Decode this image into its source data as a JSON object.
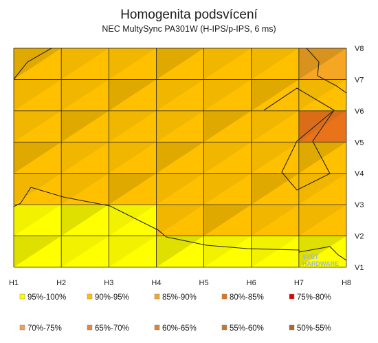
{
  "chart_data": {
    "type": "heatmap",
    "title": "Homogenita podsvícení",
    "subtitle": "NEC MultySync PA301W (H-IPS/p-IPS, 6 ms)",
    "x_ticks": [
      "H1",
      "H2",
      "H3",
      "H4",
      "H5",
      "H6",
      "H7",
      "H8"
    ],
    "y_ticks": [
      "V1",
      "V2",
      "V3",
      "V4",
      "V5",
      "V6",
      "V7",
      "V8"
    ],
    "grid": true,
    "legend_position": "bottom",
    "legend": [
      {
        "label": "95%-100%",
        "color": "#ffff00"
      },
      {
        "label": "90%-95%",
        "color": "#ffc000"
      },
      {
        "label": "85%-90%",
        "color": "#f5a623"
      },
      {
        "label": "80%-85%",
        "color": "#e8731a"
      },
      {
        "label": "75%-80%",
        "color": "#e00000"
      },
      {
        "label": "70%-75%",
        "color": "#f0a050"
      },
      {
        "label": "65%-70%",
        "color": "#e08a40"
      },
      {
        "label": "60%-65%",
        "color": "#d8843c"
      },
      {
        "label": "55%-60%",
        "color": "#c47830"
      },
      {
        "label": "50%-55%",
        "color": "#a86a2a"
      }
    ],
    "cell_bands": [
      [
        "90%-95%",
        "90%-95%",
        "90%-95%",
        "90%-95%",
        "90%-95%",
        "90%-95%",
        "85%-90%"
      ],
      [
        "90%-95%",
        "90%-95%",
        "90%-95%",
        "90%-95%",
        "90%-95%",
        "90%-95%",
        "90%-95%"
      ],
      [
        "90%-95%",
        "90%-95%",
        "90%-95%",
        "90%-95%",
        "90%-95%",
        "90%-95%",
        "80%-85%"
      ],
      [
        "90%-95%",
        "90%-95%",
        "90%-95%",
        "90%-95%",
        "90%-95%",
        "90%-95%",
        "90%-95%"
      ],
      [
        "90%-95%",
        "90%-95%",
        "90%-95%",
        "90%-95%",
        "90%-95%",
        "90%-95%",
        "90%-95%"
      ],
      [
        "95%-100%",
        "95%-100%",
        "95%-100%",
        "90%-95%",
        "90%-95%",
        "90%-95%",
        "90%-95%"
      ],
      [
        "95%-100%",
        "95%-100%",
        "95%-100%",
        "95%-100%",
        "95%-100%",
        "95%-100%",
        "95%-100%"
      ]
    ],
    "watermark": "SVĚT HARDWARE"
  }
}
